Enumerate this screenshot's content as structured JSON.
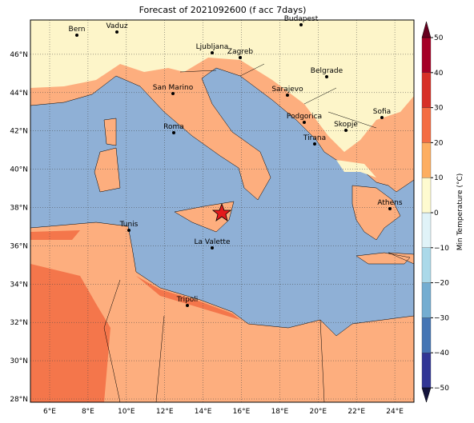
{
  "title": "Forecast of 2021092600 (f acc 7days)",
  "lon_ticks": [
    "6°E",
    "8°E",
    "10°E",
    "12°E",
    "14°E",
    "16°E",
    "18°E",
    "20°E",
    "22°E",
    "24°E"
  ],
  "lat_ticks": [
    "28°N",
    "30°N",
    "32°N",
    "34°N",
    "36°N",
    "38°N",
    "40°N",
    "42°N",
    "44°N",
    "46°N"
  ],
  "cities": [
    "Bern",
    "Vaduz",
    "Budapest",
    "Ljubljana",
    "Zagreb",
    "San Marino",
    "Sarajevo",
    "Belgrade",
    "Sofia",
    "Podgorica",
    "Skopje",
    "Roma",
    "Tirana",
    "Athens",
    "Tunis",
    "La Valette",
    "Tripoli"
  ],
  "colorbar": {
    "label": "Min Temperature (°C)",
    "ticks": [
      "−50",
      "−40",
      "−30",
      "−20",
      "−10",
      "0",
      "10",
      "20",
      "30",
      "40",
      "50"
    ]
  }
}
